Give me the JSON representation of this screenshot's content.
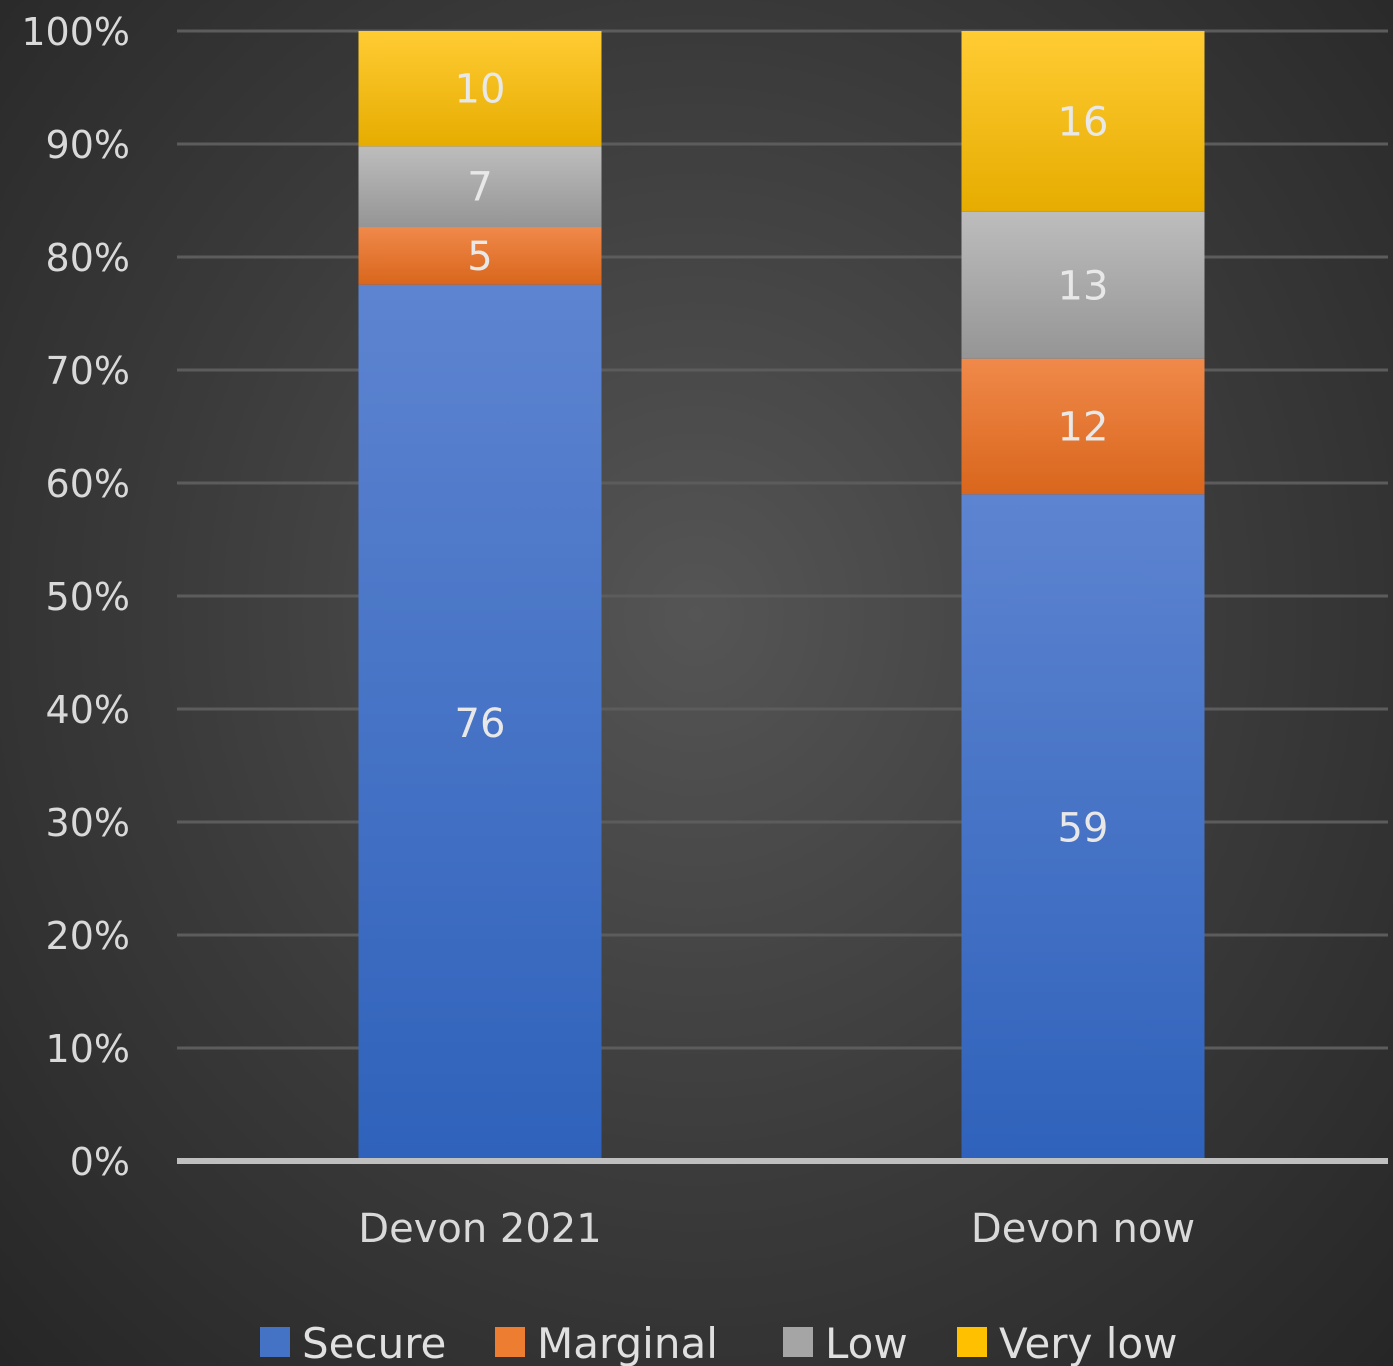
{
  "chart_data": {
    "type": "bar",
    "stacked": true,
    "percent_stacked": true,
    "categories": [
      "Devon 2021",
      "Devon now"
    ],
    "series": [
      {
        "name": "Secure",
        "values": [
          76,
          59
        ],
        "color": "#4472C4"
      },
      {
        "name": "Marginal",
        "values": [
          5,
          12
        ],
        "color": "#ED7D31"
      },
      {
        "name": "Low",
        "values": [
          7,
          13
        ],
        "color": "#A5A5A5"
      },
      {
        "name": "Very low",
        "values": [
          10,
          16
        ],
        "color": "#FFC000"
      }
    ],
    "data_labels": [
      [
        "76",
        "59"
      ],
      [
        "5",
        "12"
      ],
      [
        "7",
        "13"
      ],
      [
        "10",
        "16"
      ]
    ],
    "y_ticks": [
      "0%",
      "10%",
      "20%",
      "30%",
      "40%",
      "50%",
      "60%",
      "70%",
      "80%",
      "90%",
      "100%"
    ],
    "ylim": [
      0,
      100
    ],
    "grid": true,
    "legend": "bottom",
    "title": "",
    "xlabel": "",
    "ylabel": ""
  }
}
